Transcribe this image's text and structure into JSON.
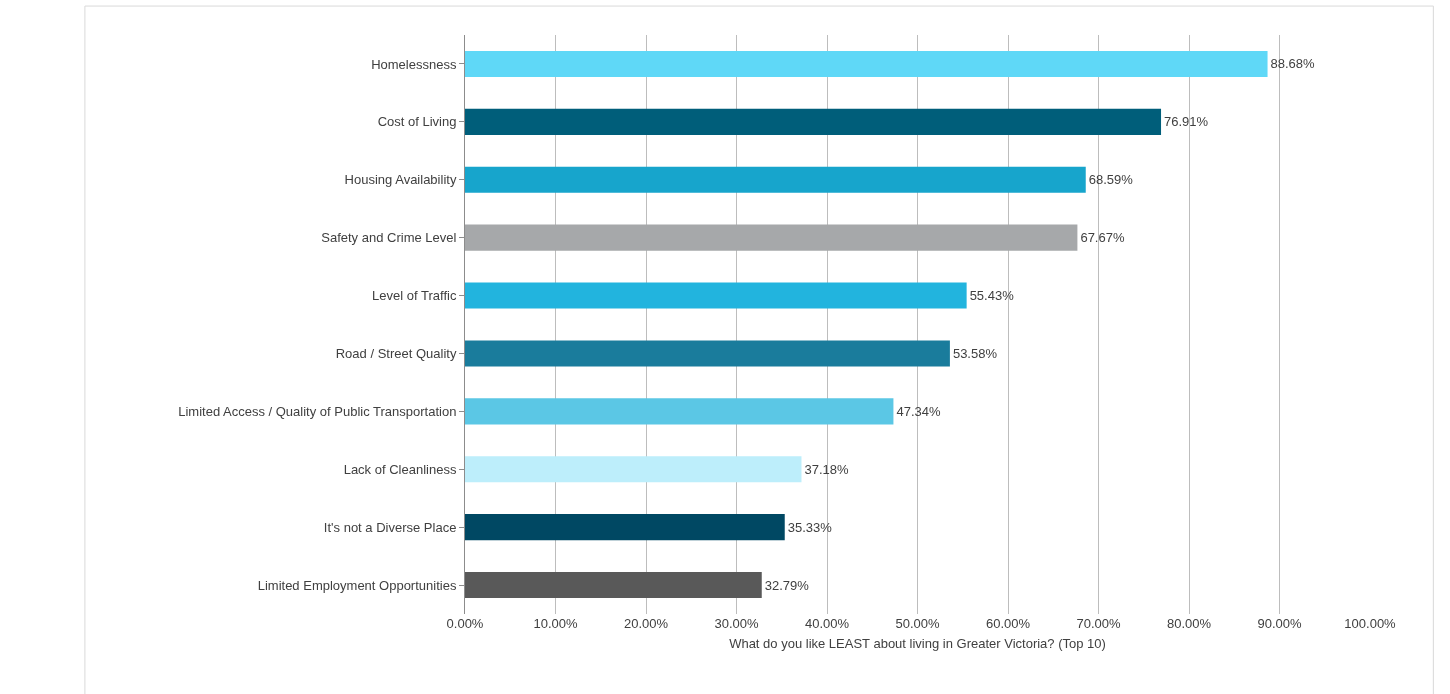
{
  "chart_data": {
    "type": "bar",
    "orientation": "horizontal",
    "xlabel": "What do you like LEAST about living in Greater Victoria? (Top 10)",
    "categories": [
      "Homelessness",
      "Cost of Living",
      "Housing Availability",
      "Safety and Crime Level",
      "Level of Traffic",
      "Road / Street Quality",
      "Limited Access / Quality of Public Transportation",
      "Lack of Cleanliness",
      "It's not a Diverse Place",
      "Limited Employment Opportunities"
    ],
    "values": [
      88.68,
      76.91,
      68.59,
      67.67,
      55.43,
      53.58,
      47.34,
      37.18,
      35.33,
      32.79
    ],
    "value_labels": [
      "88.68%",
      "76.91%",
      "68.59%",
      "67.67%",
      "55.43%",
      "53.58%",
      "47.34%",
      "37.18%",
      "35.33%",
      "32.79%"
    ],
    "colors": [
      "#5fd8f7",
      "#005e7a",
      "#17a5cc",
      "#a6a8aa",
      "#22b4de",
      "#1a7c9c",
      "#5bc7e5",
      "#bdeefb",
      "#004863",
      "#595959"
    ],
    "xlim": [
      0,
      100
    ],
    "xticks": [
      {
        "value": 0,
        "label": "0.00%"
      },
      {
        "value": 10,
        "label": "10.00%"
      },
      {
        "value": 20,
        "label": "20.00%"
      },
      {
        "value": 30,
        "label": "30.00%"
      },
      {
        "value": 40,
        "label": "40.00%"
      },
      {
        "value": 50,
        "label": "50.00%"
      },
      {
        "value": 60,
        "label": "60.00%"
      },
      {
        "value": 70,
        "label": "70.00%"
      },
      {
        "value": 80,
        "label": "80.00%"
      },
      {
        "value": 90,
        "label": "90.00%"
      },
      {
        "value": 100,
        "label": "100.00%"
      }
    ],
    "grid": "x",
    "legend": false
  }
}
